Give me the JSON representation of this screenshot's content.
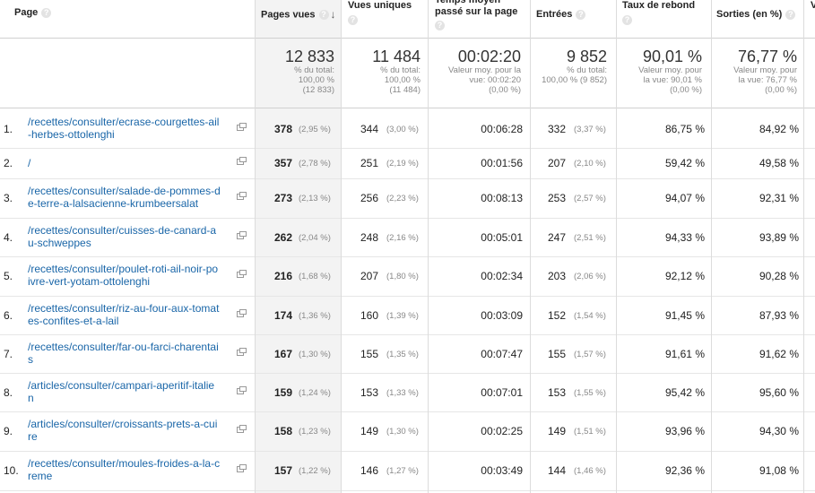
{
  "headers": {
    "page": "Page",
    "pageviews": "Pages vues",
    "unique": "Vues uniques",
    "avg_time": "Temps moyen passé sur la page",
    "entrances": "Entrées",
    "bounce": "Taux de rebond",
    "exits": "Sorties (en %)",
    "partial": "V"
  },
  "totals": {
    "pageviews": {
      "value": "12 833",
      "line1": "% du total:",
      "line2": "100,00 %",
      "line3": "(12 833)"
    },
    "unique": {
      "value": "11 484",
      "line1": "% du total:",
      "line2": "100,00 %",
      "line3": "(11 484)"
    },
    "avg_time": {
      "value": "00:02:20",
      "line1": "Valeur moy. pour la",
      "line2": "vue: 00:02:20",
      "line3": "(0,00 %)"
    },
    "entrances": {
      "value": "9 852",
      "line1": "% du total:",
      "line2": "100,00 % (9 852)",
      "line3": ""
    },
    "bounce": {
      "value": "90,01 %",
      "line1": "Valeur moy. pour",
      "line2": "la vue: 90,01 %",
      "line3": "(0,00 %)"
    },
    "exits": {
      "value": "76,77 %",
      "line1": "Valeur moy. pour",
      "line2": "la vue: 76,77 %",
      "line3": "(0,00 %)"
    }
  },
  "rows": [
    {
      "num": "1.",
      "line1": "/recettes/consulter/ecrase-courgettes-ail",
      "line2": "-herbes-ottolenghi",
      "pv": "378",
      "pv_pct": "(2,95 %)",
      "uv": "344",
      "uv_pct": "(3,00 %)",
      "time": "00:06:28",
      "ent": "332",
      "ent_pct": "(3,37 %)",
      "bounce": "86,75 %",
      "exit": "84,92 %"
    },
    {
      "num": "2.",
      "line1": "/",
      "line2": "",
      "pv": "357",
      "pv_pct": "(2,78 %)",
      "uv": "251",
      "uv_pct": "(2,19 %)",
      "time": "00:01:56",
      "ent": "207",
      "ent_pct": "(2,10 %)",
      "bounce": "59,42 %",
      "exit": "49,58 %"
    },
    {
      "num": "3.",
      "line1": "/recettes/consulter/salade-de-pommes-d",
      "line2": "e-terre-a-lalsacienne-krumbeersalat",
      "pv": "273",
      "pv_pct": "(2,13 %)",
      "uv": "256",
      "uv_pct": "(2,23 %)",
      "time": "00:08:13",
      "ent": "253",
      "ent_pct": "(2,57 %)",
      "bounce": "94,07 %",
      "exit": "92,31 %"
    },
    {
      "num": "4.",
      "line1": "/recettes/consulter/cuisses-de-canard-a",
      "line2": "u-schweppes",
      "pv": "262",
      "pv_pct": "(2,04 %)",
      "uv": "248",
      "uv_pct": "(2,16 %)",
      "time": "00:05:01",
      "ent": "247",
      "ent_pct": "(2,51 %)",
      "bounce": "94,33 %",
      "exit": "93,89 %"
    },
    {
      "num": "5.",
      "line1": "/recettes/consulter/poulet-roti-ail-noir-po",
      "line2": "ivre-vert-yotam-ottolenghi",
      "pv": "216",
      "pv_pct": "(1,68 %)",
      "uv": "207",
      "uv_pct": "(1,80 %)",
      "time": "00:02:34",
      "ent": "203",
      "ent_pct": "(2,06 %)",
      "bounce": "92,12 %",
      "exit": "90,28 %"
    },
    {
      "num": "6.",
      "line1": "/recettes/consulter/riz-au-four-aux-tomat",
      "line2": "es-confites-et-a-lail",
      "pv": "174",
      "pv_pct": "(1,36 %)",
      "uv": "160",
      "uv_pct": "(1,39 %)",
      "time": "00:03:09",
      "ent": "152",
      "ent_pct": "(1,54 %)",
      "bounce": "91,45 %",
      "exit": "87,93 %"
    },
    {
      "num": "7.",
      "line1": "/recettes/consulter/far-ou-farci-charentai",
      "line2": "s",
      "pv": "167",
      "pv_pct": "(1,30 %)",
      "uv": "155",
      "uv_pct": "(1,35 %)",
      "time": "00:07:47",
      "ent": "155",
      "ent_pct": "(1,57 %)",
      "bounce": "91,61 %",
      "exit": "91,62 %"
    },
    {
      "num": "8.",
      "line1": "/articles/consulter/campari-aperitif-italie",
      "line2": "n",
      "pv": "159",
      "pv_pct": "(1,24 %)",
      "uv": "153",
      "uv_pct": "(1,33 %)",
      "time": "00:07:01",
      "ent": "153",
      "ent_pct": "(1,55 %)",
      "bounce": "95,42 %",
      "exit": "95,60 %"
    },
    {
      "num": "9.",
      "line1": "/articles/consulter/croissants-prets-a-cui",
      "line2": "re",
      "pv": "158",
      "pv_pct": "(1,23 %)",
      "uv": "149",
      "uv_pct": "(1,30 %)",
      "time": "00:02:25",
      "ent": "149",
      "ent_pct": "(1,51 %)",
      "bounce": "93,96 %",
      "exit": "94,30 %"
    },
    {
      "num": "10.",
      "line1": "/recettes/consulter/moules-froides-a-la-c",
      "line2": "reme",
      "pv": "157",
      "pv_pct": "(1,22 %)",
      "uv": "146",
      "uv_pct": "(1,27 %)",
      "time": "00:03:49",
      "ent": "144",
      "ent_pct": "(1,46 %)",
      "bounce": "92,36 %",
      "exit": "91,08 %"
    }
  ],
  "colors": {
    "link": "#1a66a8",
    "sorted_column_bg": "#f3f3f3"
  },
  "icons": {
    "help": "question-circle-icon",
    "sort": "arrow-down-icon",
    "external": "open-in-new-window-icon"
  }
}
